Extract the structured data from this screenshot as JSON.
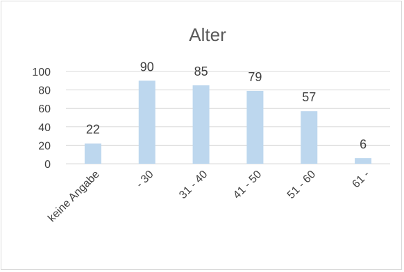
{
  "chart_data": {
    "type": "bar",
    "title": "Alter",
    "categories": [
      "keine Angabe",
      "- 30",
      "31 - 40",
      "41 - 50",
      "51 - 60",
      "61 -"
    ],
    "values": [
      22,
      90,
      85,
      79,
      57,
      6
    ],
    "ylim": [
      0,
      100
    ],
    "yticks": [
      0,
      20,
      40,
      60,
      80,
      100
    ],
    "grid": true,
    "legend": "none",
    "data_labels": true,
    "bar_color": "#bdd7ee"
  }
}
